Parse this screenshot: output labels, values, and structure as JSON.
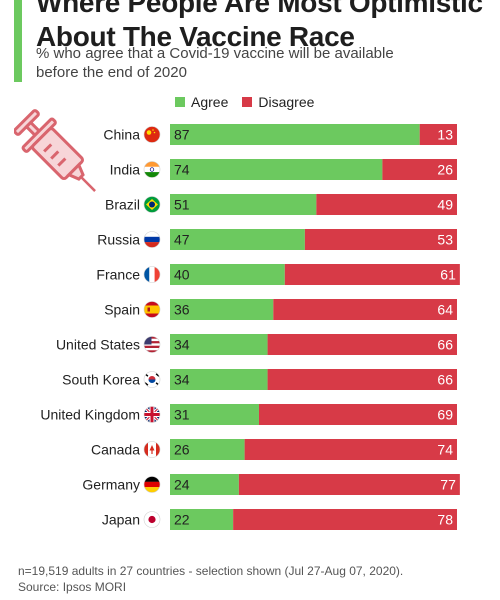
{
  "header": {
    "title_line1": "Where People Are Most Optimistic",
    "title_line2": "About The Vaccine Race",
    "subtitle_line1": "% who agree that a Covid-19 vaccine will be available",
    "subtitle_line2": "before the end of 2020"
  },
  "colors": {
    "agree": "#6cc95f",
    "disagree": "#d73a47",
    "accent": "#6cc95f"
  },
  "chart_data": {
    "type": "bar",
    "orientation": "horizontal",
    "stacked": true,
    "title": "Where People Are Most Optimistic About The Vaccine Race",
    "subtitle": "% who agree that a Covid-19 vaccine will be available before the end of 2020",
    "legend_position": "top",
    "categories": [
      "China",
      "India",
      "Brazil",
      "Russia",
      "France",
      "Spain",
      "United States",
      "South Korea",
      "United Kingdom",
      "Canada",
      "Germany",
      "Japan"
    ],
    "series": [
      {
        "name": "Agree",
        "color": "#6cc95f",
        "values": [
          87,
          74,
          51,
          47,
          40,
          36,
          34,
          34,
          31,
          26,
          24,
          22
        ]
      },
      {
        "name": "Disagree",
        "color": "#d73a47",
        "values": [
          13,
          26,
          49,
          53,
          61,
          64,
          66,
          66,
          69,
          74,
          77,
          78
        ]
      }
    ],
    "flags": [
      "china-flag-icon",
      "india-flag-icon",
      "brazil-flag-icon",
      "russia-flag-icon",
      "france-flag-icon",
      "spain-flag-icon",
      "usa-flag-icon",
      "south-korea-flag-icon",
      "uk-flag-icon",
      "canada-flag-icon",
      "germany-flag-icon",
      "japan-flag-icon"
    ]
  },
  "footer": {
    "note": "n=19,519 adults in 27 countries - selection shown (Jul 27-Aug 07, 2020).",
    "source": "Source: Ipsos MORI"
  },
  "decoration": {
    "illustration": "syringe-icon"
  }
}
